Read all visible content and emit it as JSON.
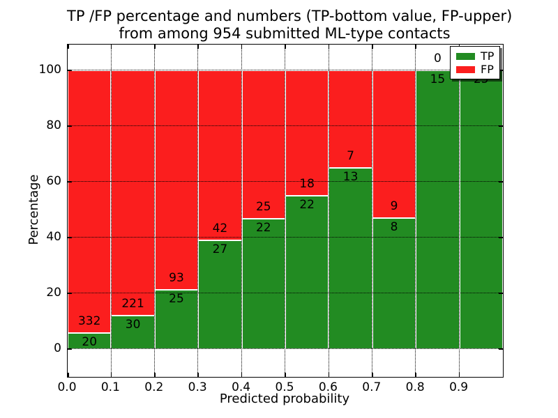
{
  "chart_data": {
    "type": "bar",
    "stacked": true,
    "title_line1": "TP /FP percentage and numbers (TP-bottom value, FP-upper)",
    "title_line2": "from among 954 submitted ML-type contacts",
    "total_submitted_contacts": 954,
    "xlabel": "Predicted probability",
    "ylabel": "Percentage",
    "xlim": [
      0.0,
      1.0
    ],
    "ylim": [
      -10,
      109
    ],
    "x_tick_labels": [
      "0.0",
      "0.1",
      "0.2",
      "0.3",
      "0.4",
      "0.5",
      "0.6",
      "0.7",
      "0.8",
      "0.9"
    ],
    "y_tick_values": [
      0,
      20,
      40,
      60,
      80,
      100
    ],
    "grid": "dotted black lines at every x and y tick",
    "bar_edge_color": "#ffffff",
    "colors": {
      "tp": "#228B22",
      "fp": "#FB1E1E"
    },
    "legend": {
      "position": "upper-right",
      "items": [
        {
          "label": "TP",
          "color": "#228B22"
        },
        {
          "label": "FP",
          "color": "#FB1E1E"
        }
      ]
    },
    "annotation_note": "TP count printed below each TP/FP boundary, FP count printed above it; last bar FP count hidden behind legend",
    "bars": [
      {
        "bin_start": 0.0,
        "bin_end": 0.1,
        "tp_count_label": "20",
        "fp_count_label": "332",
        "tp_pct": 5.7
      },
      {
        "bin_start": 0.1,
        "bin_end": 0.2,
        "tp_count_label": "30",
        "fp_count_label": "221",
        "tp_pct": 12.0
      },
      {
        "bin_start": 0.2,
        "bin_end": 0.3,
        "tp_count_label": "25",
        "fp_count_label": "93",
        "tp_pct": 21.2
      },
      {
        "bin_start": 0.3,
        "bin_end": 0.4,
        "tp_count_label": "27",
        "fp_count_label": "42",
        "tp_pct": 39.1
      },
      {
        "bin_start": 0.4,
        "bin_end": 0.5,
        "tp_count_label": "22",
        "fp_count_label": "25",
        "tp_pct": 46.8
      },
      {
        "bin_start": 0.5,
        "bin_end": 0.6,
        "tp_count_label": "22",
        "fp_count_label": "18",
        "tp_pct": 55.0
      },
      {
        "bin_start": 0.6,
        "bin_end": 0.7,
        "tp_count_label": "13",
        "fp_count_label": "7",
        "tp_pct": 65.0
      },
      {
        "bin_start": 0.7,
        "bin_end": 0.8,
        "tp_count_label": "8",
        "fp_count_label": "9",
        "tp_pct": 47.1
      },
      {
        "bin_start": 0.8,
        "bin_end": 0.9,
        "tp_count_label": "15",
        "fp_count_label": "0",
        "tp_pct": 100
      },
      {
        "bin_start": 0.9,
        "bin_end": 1.0,
        "tp_count_label": "25",
        "fp_count_label": "",
        "tp_pct": 100
      }
    ]
  }
}
